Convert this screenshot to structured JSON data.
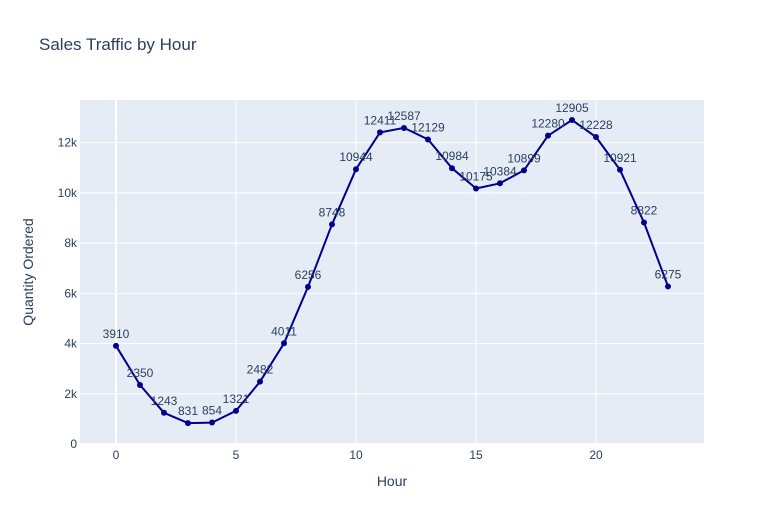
{
  "chart_data": {
    "type": "line",
    "title": "Sales Traffic by Hour",
    "xlabel": "Hour",
    "ylabel": "Quantity Ordered",
    "xlim": [
      -1.5,
      24.5
    ],
    "ylim": [
      0,
      13700
    ],
    "x_ticks": [
      0,
      5,
      10,
      15,
      20
    ],
    "x_tick_labels": [
      "0",
      "5",
      "10",
      "15",
      "20"
    ],
    "y_ticks": [
      0,
      2000,
      4000,
      6000,
      8000,
      10000,
      12000
    ],
    "y_tick_labels": [
      "0",
      "2k",
      "4k",
      "6k",
      "8k",
      "10k",
      "12k"
    ],
    "grid": true,
    "legend": "none",
    "line_color": "#00008b",
    "plot_bg_color": "#e5ecf6",
    "x": [
      0,
      1,
      2,
      3,
      4,
      5,
      6,
      7,
      8,
      9,
      10,
      11,
      12,
      13,
      14,
      15,
      16,
      17,
      18,
      19,
      20,
      21,
      22,
      23
    ],
    "values": [
      3910,
      2350,
      1243,
      831,
      854,
      1321,
      2482,
      4011,
      6256,
      8748,
      10944,
      12411,
      12587,
      12129,
      10984,
      10175,
      10384,
      10899,
      12280,
      12905,
      12228,
      10921,
      8822,
      6275
    ],
    "data_labels": [
      "3910",
      "2350",
      "1243",
      "831",
      "854",
      "1321",
      "2482",
      "4011",
      "6256",
      "8748",
      "10944",
      "12411",
      "12587",
      "12129",
      "10984",
      "10175",
      "10384",
      "10899",
      "12280",
      "12905",
      "12228",
      "10921",
      "8822",
      "6275"
    ]
  }
}
